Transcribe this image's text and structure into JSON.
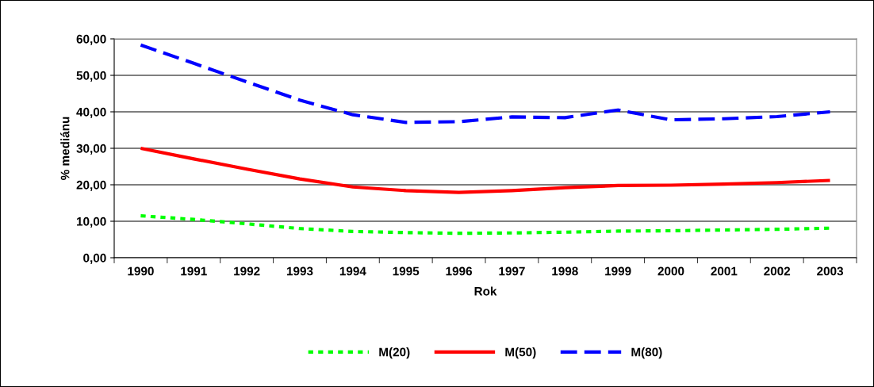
{
  "chart_data": {
    "type": "line",
    "xlabel": "Rok",
    "ylabel": "% mediánu",
    "categories": [
      "1990",
      "1991",
      "1992",
      "1993",
      "1994",
      "1995",
      "1996",
      "1997",
      "1998",
      "1999",
      "2000",
      "2001",
      "2002",
      "2003"
    ],
    "series": [
      {
        "name": "M(20)",
        "color": "#00ff00",
        "line_style": "dotted",
        "values": [
          11.5,
          10.5,
          9.3,
          8.0,
          7.2,
          6.9,
          6.7,
          6.8,
          7.0,
          7.3,
          7.4,
          7.6,
          7.8,
          8.1
        ]
      },
      {
        "name": "M(50)",
        "color": "#ff0000",
        "line_style": "solid",
        "values": [
          30.0,
          27.1,
          24.3,
          21.6,
          19.4,
          18.4,
          17.9,
          18.4,
          19.2,
          19.8,
          19.9,
          20.2,
          20.6,
          21.2
        ]
      },
      {
        "name": "M(80)",
        "color": "#0000ff",
        "line_style": "dashed",
        "values": [
          58.3,
          53.3,
          48.2,
          43.2,
          39.2,
          37.1,
          37.3,
          38.6,
          38.4,
          40.5,
          37.8,
          38.1,
          38.7,
          40.0
        ]
      }
    ],
    "ylim": [
      0,
      60
    ],
    "yticks": [
      {
        "value": 0,
        "label": "0,00"
      },
      {
        "value": 10,
        "label": "10,00"
      },
      {
        "value": 20,
        "label": "20,00"
      },
      {
        "value": 30,
        "label": "30,00"
      },
      {
        "value": 40,
        "label": "40,00"
      },
      {
        "value": 50,
        "label": "50,00"
      },
      {
        "value": 60,
        "label": "60,00"
      }
    ],
    "grid": "y",
    "legend": "bottom",
    "marker": "none"
  }
}
